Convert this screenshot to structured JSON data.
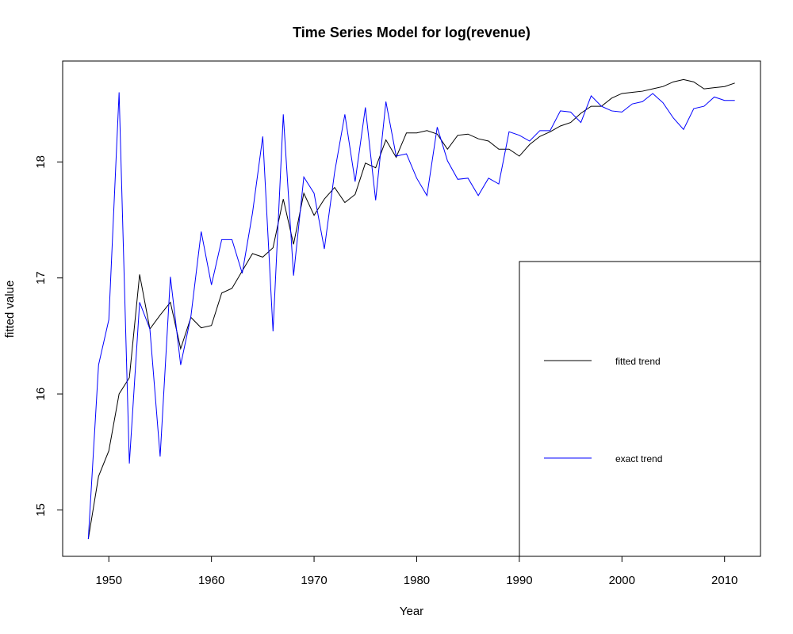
{
  "chart_data": {
    "type": "line",
    "title": "Time Series Model for log(revenue)",
    "xlabel": "Year",
    "ylabel": "fitted value",
    "xlim": [
      1945.5,
      2013.5
    ],
    "ylim": [
      14.6,
      18.87
    ],
    "x_ticks": [
      1950,
      1960,
      1970,
      1980,
      1990,
      2000,
      2010
    ],
    "y_ticks": [
      15,
      16,
      17,
      18
    ],
    "grid": false,
    "legend_position": "bottom-right",
    "x": [
      1948,
      1949,
      1950,
      1951,
      1952,
      1953,
      1954,
      1955,
      1956,
      1957,
      1958,
      1959,
      1960,
      1961,
      1962,
      1963,
      1964,
      1965,
      1966,
      1967,
      1968,
      1969,
      1970,
      1971,
      1972,
      1973,
      1974,
      1975,
      1976,
      1977,
      1978,
      1979,
      1980,
      1981,
      1982,
      1983,
      1984,
      1985,
      1986,
      1987,
      1988,
      1989,
      1990,
      1991,
      1992,
      1993,
      1994,
      1995,
      1996,
      1997,
      1998,
      1999,
      2000,
      2001,
      2002,
      2003,
      2004,
      2005,
      2006,
      2007,
      2008,
      2009,
      2010,
      2011
    ],
    "series": [
      {
        "name": "fitted trend",
        "color": "#000000",
        "values": [
          14.75,
          15.29,
          15.51,
          16.0,
          16.14,
          17.03,
          16.56,
          16.68,
          16.79,
          16.39,
          16.66,
          16.57,
          16.59,
          16.87,
          16.91,
          17.06,
          17.21,
          17.18,
          17.26,
          17.68,
          17.29,
          17.73,
          17.54,
          17.68,
          17.78,
          17.65,
          17.72,
          17.99,
          17.95,
          18.19,
          18.04,
          18.25,
          18.25,
          18.27,
          18.24,
          18.11,
          18.23,
          18.24,
          18.2,
          18.18,
          18.11,
          18.11,
          18.05,
          18.15,
          18.22,
          18.26,
          18.31,
          18.34,
          18.42,
          18.48,
          18.48,
          18.55,
          18.59,
          18.6,
          18.61,
          18.63,
          18.65,
          18.69,
          18.71,
          18.69,
          18.63,
          18.64,
          18.65,
          18.68
        ]
      },
      {
        "name": "exact trend",
        "color": "#0000ff",
        "values": [
          14.75,
          16.25,
          16.64,
          18.6,
          15.4,
          16.79,
          16.56,
          15.46,
          17.01,
          16.25,
          16.67,
          17.4,
          16.94,
          17.33,
          17.33,
          17.04,
          17.56,
          18.22,
          16.54,
          18.41,
          17.02,
          17.87,
          17.73,
          17.25,
          17.91,
          18.41,
          17.83,
          18.47,
          17.67,
          18.52,
          18.05,
          18.07,
          17.86,
          17.71,
          18.3,
          18.01,
          17.85,
          17.86,
          17.71,
          17.86,
          17.81,
          18.26,
          18.23,
          18.18,
          18.27,
          18.27,
          18.44,
          18.43,
          18.34,
          18.57,
          18.48,
          18.44,
          18.43,
          18.5,
          18.52,
          18.59,
          18.51,
          18.38,
          18.28,
          18.46,
          18.48,
          18.56,
          18.53,
          18.53
        ]
      }
    ]
  }
}
